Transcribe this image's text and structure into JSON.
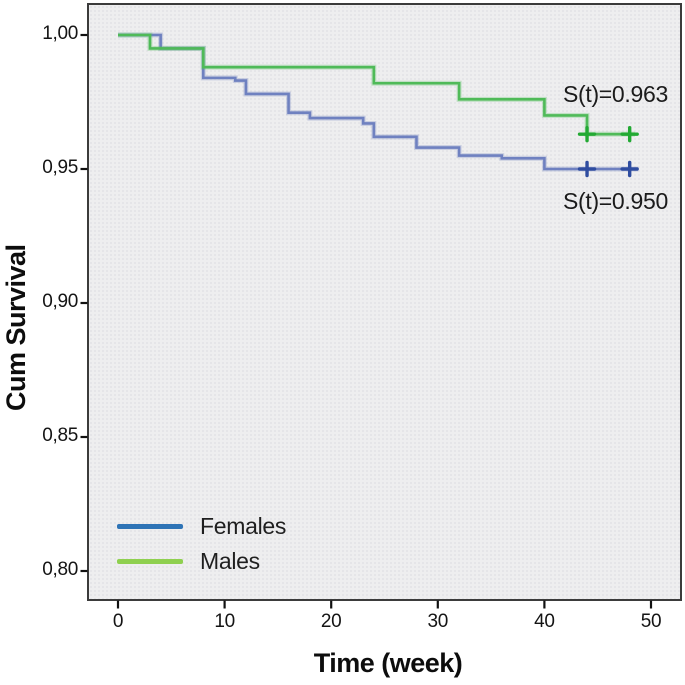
{
  "chart_data": {
    "type": "line",
    "subtype": "kaplan-meier-step-survival",
    "title": "",
    "xlabel": "Time (week)",
    "ylabel": "Cum Survival",
    "x_axis": {
      "ticks": [
        {
          "label": "0",
          "value": 0
        },
        {
          "label": "10",
          "value": 10
        },
        {
          "label": "20",
          "value": 20
        },
        {
          "label": "30",
          "value": 30
        },
        {
          "label": "40",
          "value": 40
        },
        {
          "label": "50",
          "value": 50
        }
      ],
      "xlim": [
        -2.9,
        52.9
      ]
    },
    "y_axis": {
      "ticks": [
        {
          "label": "1,00",
          "value": 1.0
        },
        {
          "label": "0,95",
          "value": 0.95
        },
        {
          "label": "0,90",
          "value": 0.9
        },
        {
          "label": "0,85",
          "value": 0.85
        },
        {
          "label": "0,80",
          "value": 0.8
        }
      ],
      "ylim": [
        0.789,
        1.012
      ],
      "decimal_separator": "comma"
    },
    "grid": false,
    "plot_background": "#eeeeef",
    "frame_color": "#3b3b3b",
    "series": [
      {
        "name": "Females",
        "line_color": "#6f81c0",
        "censor_color": "#2f4da0",
        "steps": [
          [
            0,
            1.0
          ],
          [
            4,
            0.995
          ],
          [
            8,
            0.984
          ],
          [
            11,
            0.983
          ],
          [
            12,
            0.978
          ],
          [
            16,
            0.971
          ],
          [
            18,
            0.969
          ],
          [
            23,
            0.967
          ],
          [
            24,
            0.962
          ],
          [
            28,
            0.958
          ],
          [
            32,
            0.955
          ],
          [
            36,
            0.954
          ],
          [
            40,
            0.95
          ]
        ],
        "end_time": 48.8,
        "censored": [
          [
            44,
            0.95
          ],
          [
            48,
            0.95
          ]
        ],
        "final_survival": 0.95
      },
      {
        "name": "Males",
        "line_color": "#4fba58",
        "censor_color": "#22a933",
        "steps": [
          [
            0,
            1.0
          ],
          [
            3,
            0.995
          ],
          [
            8,
            0.988
          ],
          [
            24,
            0.982
          ],
          [
            32,
            0.976
          ],
          [
            40,
            0.97
          ],
          [
            44,
            0.963
          ]
        ],
        "end_time": 48.5,
        "censored": [
          [
            44,
            0.963
          ],
          [
            48,
            0.963
          ]
        ],
        "final_survival": 0.963
      }
    ],
    "annotations": [
      {
        "text": "S(t)=0.963",
        "series": "Males"
      },
      {
        "text": "S(t)=0.950",
        "series": "Females"
      }
    ],
    "legend": {
      "position": "lower-left-inside-plot",
      "items": [
        {
          "label": "Females",
          "color": "#2e74b6"
        },
        {
          "label": "Males",
          "color": "#8fd04f"
        }
      ]
    }
  }
}
